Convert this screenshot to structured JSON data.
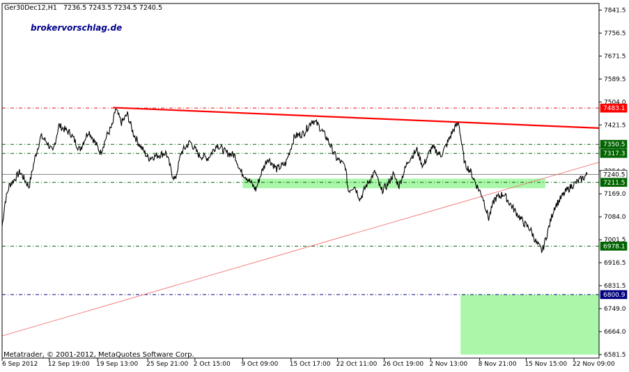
{
  "header": {
    "symbol_info": "Ger30Dec12,H1",
    "ohlc": "7236.5 7243.5 7234.5 7240.5"
  },
  "brand": "brokervorschlag.de",
  "copyright": "Metatrader, © 2001-2012, MetaQuotes Software Corp.",
  "chart_data": {
    "type": "line",
    "ylim": [
      6581.5,
      7841.5
    ],
    "y_ticks": [
      "7841.5",
      "7756.5",
      "7671.5",
      "7589.5",
      "7504.0",
      "7421.5",
      "7336.5",
      "7254.0",
      "7169.0",
      "7084.0",
      "7001.5",
      "6916.5",
      "6831.5",
      "6749.0",
      "6664.0",
      "6581.5"
    ],
    "x_ticks": [
      "6 Sep 2012",
      "12 Sep 19:00",
      "19 Sep 13:00",
      "25 Sep 21:00",
      "2 Oct 15:00",
      "9 Oct 09:00",
      "15 Oct 17:00",
      "22 Oct 11:00",
      "26 Oct 19:00",
      "2 Nov 13:00",
      "8 Nov 21:00",
      "15 Nov 15:00",
      "22 Nov 09:00"
    ],
    "x_tick_positions": [
      0,
      0.079,
      0.16,
      0.244,
      0.323,
      0.403,
      0.484,
      0.562,
      0.64,
      0.718,
      0.8,
      0.878,
      0.958
    ],
    "price_key": [
      [
        0.0,
        7050
      ],
      [
        0.005,
        7140
      ],
      [
        0.012,
        7200
      ],
      [
        0.02,
        7220
      ],
      [
        0.03,
        7250
      ],
      [
        0.045,
        7195
      ],
      [
        0.055,
        7300
      ],
      [
        0.065,
        7380
      ],
      [
        0.075,
        7360
      ],
      [
        0.085,
        7320
      ],
      [
        0.095,
        7420
      ],
      [
        0.105,
        7405
      ],
      [
        0.115,
        7390
      ],
      [
        0.13,
        7330
      ],
      [
        0.145,
        7400
      ],
      [
        0.155,
        7360
      ],
      [
        0.165,
        7320
      ],
      [
        0.175,
        7380
      ],
      [
        0.185,
        7420
      ],
      [
        0.19,
        7480
      ],
      [
        0.2,
        7430
      ],
      [
        0.21,
        7460
      ],
      [
        0.22,
        7390
      ],
      [
        0.23,
        7350
      ],
      [
        0.245,
        7300
      ],
      [
        0.26,
        7310
      ],
      [
        0.275,
        7320
      ],
      [
        0.285,
        7240
      ],
      [
        0.29,
        7220
      ],
      [
        0.3,
        7320
      ],
      [
        0.315,
        7360
      ],
      [
        0.33,
        7310
      ],
      [
        0.345,
        7300
      ],
      [
        0.36,
        7350
      ],
      [
        0.375,
        7320
      ],
      [
        0.39,
        7310
      ],
      [
        0.4,
        7250
      ],
      [
        0.41,
        7230
      ],
      [
        0.42,
        7200
      ],
      [
        0.425,
        7185
      ],
      [
        0.435,
        7250
      ],
      [
        0.445,
        7300
      ],
      [
        0.46,
        7260
      ],
      [
        0.475,
        7280
      ],
      [
        0.49,
        7380
      ],
      [
        0.505,
        7390
      ],
      [
        0.52,
        7440
      ],
      [
        0.53,
        7420
      ],
      [
        0.545,
        7370
      ],
      [
        0.56,
        7300
      ],
      [
        0.575,
        7270
      ],
      [
        0.58,
        7180
      ],
      [
        0.59,
        7200
      ],
      [
        0.6,
        7150
      ],
      [
        0.61,
        7200
      ],
      [
        0.625,
        7250
      ],
      [
        0.635,
        7180
      ],
      [
        0.645,
        7200
      ],
      [
        0.655,
        7240
      ],
      [
        0.665,
        7200
      ],
      [
        0.68,
        7290
      ],
      [
        0.695,
        7330
      ],
      [
        0.705,
        7270
      ],
      [
        0.72,
        7340
      ],
      [
        0.735,
        7310
      ],
      [
        0.745,
        7350
      ],
      [
        0.755,
        7400
      ],
      [
        0.765,
        7430
      ],
      [
        0.77,
        7350
      ],
      [
        0.775,
        7280
      ],
      [
        0.785,
        7250
      ],
      [
        0.795,
        7200
      ],
      [
        0.805,
        7160
      ],
      [
        0.815,
        7080
      ],
      [
        0.825,
        7150
      ],
      [
        0.84,
        7170
      ],
      [
        0.855,
        7120
      ],
      [
        0.865,
        7090
      ],
      [
        0.875,
        7060
      ],
      [
        0.885,
        7040
      ],
      [
        0.895,
        6990
      ],
      [
        0.905,
        6960
      ],
      [
        0.915,
        7040
      ],
      [
        0.925,
        7120
      ],
      [
        0.935,
        7150
      ],
      [
        0.945,
        7180
      ],
      [
        0.955,
        7200
      ],
      [
        0.965,
        7215
      ],
      [
        0.975,
        7230
      ],
      [
        0.98,
        7240
      ]
    ],
    "current_price": 7240.5,
    "levels": [
      {
        "label": "7483.1",
        "value": 7483.1,
        "color": "#ff0000",
        "text_color": "#ffffff",
        "line": "#e01010",
        "dash": "5,3,1,3"
      },
      {
        "label": "7350.5",
        "value": 7350.5,
        "color": "#006400",
        "text_color": "#ffffff",
        "line": "#006400",
        "dash": "5,3,1,3"
      },
      {
        "label": "7317.3",
        "value": 7317.3,
        "color": "#006400",
        "text_color": "#ffffff",
        "line": "#006400",
        "dash": "5,3,1,3"
      },
      {
        "label": "7240.5",
        "value": 7240.5,
        "color": "#ffffff",
        "text_color": "#000000",
        "line": "#808080",
        "dash": ""
      },
      {
        "label": "7211.5",
        "value": 7211.5,
        "color": "#006400",
        "text_color": "#ffffff",
        "line": "#006400",
        "dash": "5,3,1,3"
      },
      {
        "label": "6978.1",
        "value": 6978.1,
        "color": "#006400",
        "text_color": "#ffffff",
        "line": "#006400",
        "dash": "5,3,1,3"
      },
      {
        "label": "6800.9",
        "value": 6800.9,
        "color": "#000080",
        "text_color": "#ffffff",
        "line": "#000080",
        "dash": "5,3,1,3"
      }
    ],
    "zones": [
      {
        "x0": 0.403,
        "x1": 0.91,
        "y0": 7190,
        "y1": 7225,
        "color": "#aaf7aa"
      },
      {
        "x0": 0.768,
        "x1": 1.0,
        "y0": 6581.5,
        "y1": 6800.9,
        "color": "#aaf7aa"
      }
    ],
    "trendlines": [
      {
        "x0": 0.186,
        "y0": 7485,
        "x1": 1.0,
        "y1": 7410,
        "color": "#ff0000",
        "width": 2.2
      },
      {
        "x0": 0.0,
        "y0": 6650,
        "x1": 1.0,
        "y1": 7285,
        "color": "#f06060",
        "width": 0.8
      }
    ]
  }
}
